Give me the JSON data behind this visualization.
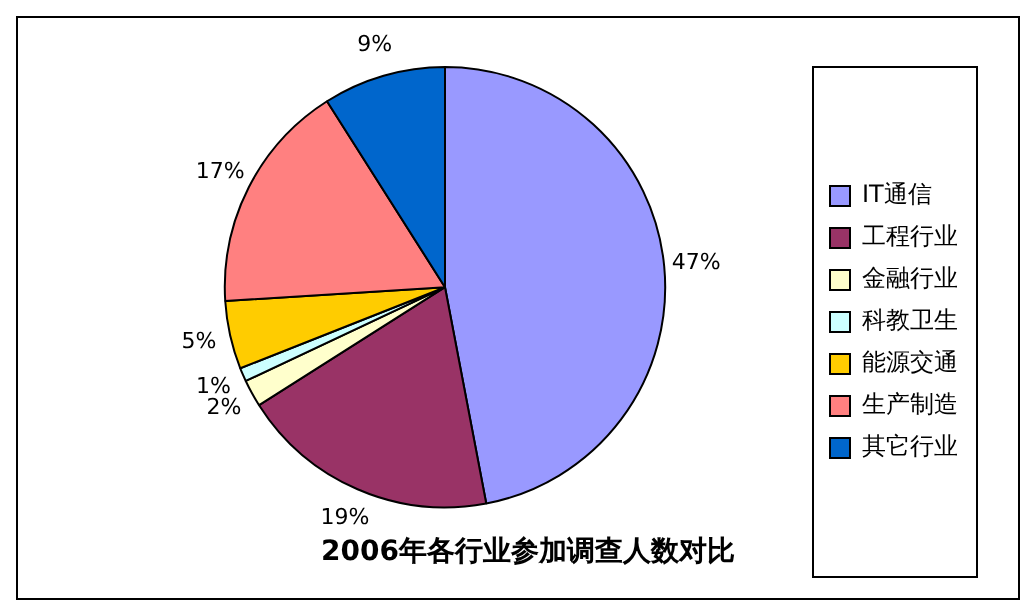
{
  "chart_data": {
    "type": "pie",
    "title": "2006年各行业参加调查人数对比",
    "categories": [
      "IT通信",
      "工程行业",
      "金融行业",
      "科教卫生",
      "能源交通",
      "生产制造",
      "其它行业"
    ],
    "values": [
      47,
      19,
      2,
      1,
      5,
      17,
      9
    ],
    "colors": [
      "#9999ff",
      "#993366",
      "#ffffcc",
      "#ccffff",
      "#ffcc00",
      "#ff8080",
      "#0066cc"
    ],
    "value_labels": [
      "47%",
      "19%",
      "2%",
      "1%",
      "5%",
      "17%",
      "9%"
    ],
    "legend": "right"
  }
}
